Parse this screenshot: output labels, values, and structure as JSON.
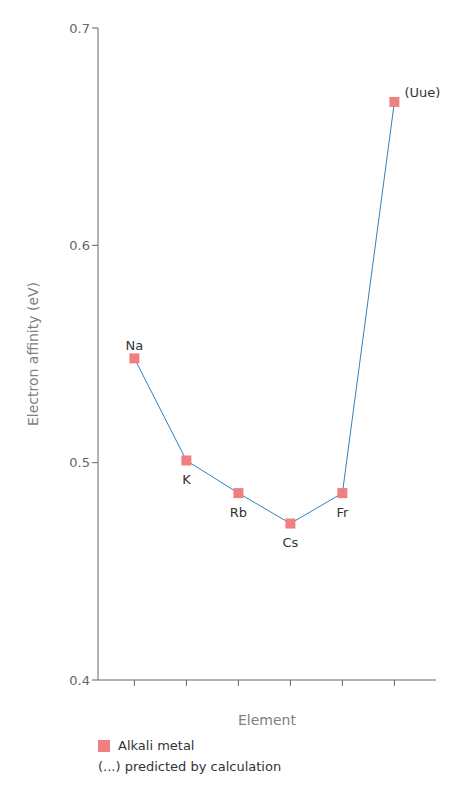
{
  "chart_data": {
    "type": "line",
    "xlabel": "Element",
    "ylabel": "Electron affinity (eV)",
    "x": [
      1,
      2,
      3,
      4,
      5,
      6
    ],
    "series": [
      {
        "name": "Alkali metal",
        "color": "#F08080",
        "marker": "square",
        "values": [
          0.548,
          0.501,
          0.486,
          0.472,
          0.486,
          0.666
        ]
      }
    ],
    "xlim": [
      0.3,
      6.8
    ],
    "xticks": [
      1,
      2,
      3,
      4,
      5,
      6
    ],
    "ylim": [
      0.4,
      0.7
    ],
    "yticks": [
      0.4,
      0.5,
      0.6,
      0.7
    ],
    "tick_labels": "y",
    "grid": false,
    "legend": "bottom",
    "annotations": [
      {
        "text": "Na",
        "x": 1,
        "y": 0.548
      },
      {
        "text": "K",
        "x": 2,
        "y": 0.501
      },
      {
        "text": "Rb",
        "x": 3,
        "y": 0.486
      },
      {
        "text": "Cs",
        "x": 4,
        "y": 0.472
      },
      {
        "text": "Fr",
        "x": 5,
        "y": 0.486
      },
      {
        "text": "(Uue)",
        "x": 6,
        "y": 0.666
      },
      {
        "text": "(...) predicted by calculation"
      }
    ]
  }
}
